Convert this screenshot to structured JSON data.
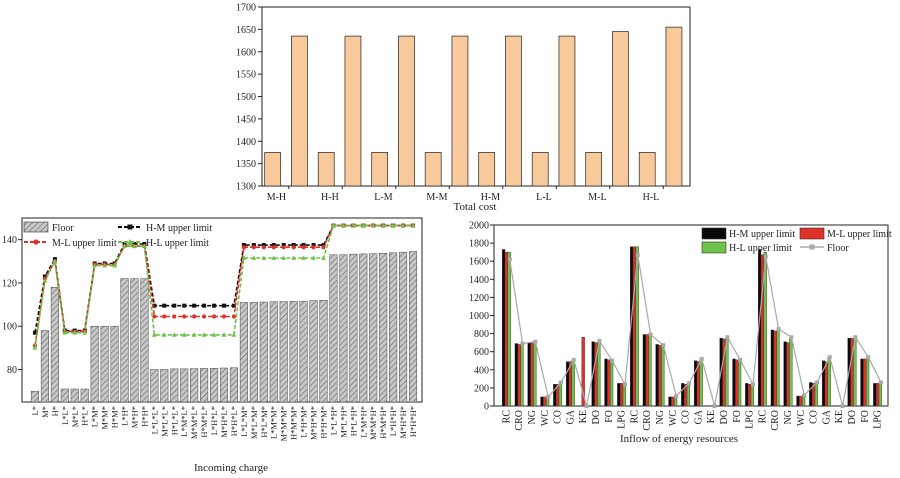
{
  "chart_data": [
    {
      "type": "bar",
      "xlabel": "Total cost",
      "ylim": [
        1300,
        1700
      ],
      "yticks": [
        1300,
        1350,
        1400,
        1450,
        1500,
        1550,
        1600,
        1650,
        1700
      ],
      "categories": [
        "M-H",
        "H-H",
        "L-M",
        "M-M",
        "H-M",
        "L-L",
        "M-L",
        "H-L"
      ],
      "pairs": [
        [
          1375,
          1635
        ],
        [
          1375,
          1635
        ],
        [
          1375,
          1635
        ],
        [
          1375,
          1635
        ],
        [
          1375,
          1635
        ],
        [
          1375,
          1635
        ],
        [
          1375,
          1645
        ],
        [
          1375,
          1655
        ]
      ],
      "bar_color": "#f8c99b",
      "grid": false
    },
    {
      "type": "bar",
      "xlabel": "Incoming charge",
      "ylim": [
        65,
        150
      ],
      "yticks": [
        80,
        100,
        120,
        140
      ],
      "legend_position": "top",
      "categories": [
        "L*",
        "M*",
        "H*",
        "L*L*",
        "M*L*",
        "H*L*",
        "L*M*",
        "M*M*",
        "H*M*",
        "L*H*",
        "M*H*",
        "H*H*",
        "L*L*L*",
        "M*L*L*",
        "H*L*L*",
        "L*M*L*",
        "M*M*L*",
        "H*M*L*",
        "L*H*L*",
        "M*H*L*",
        "H*H*L*",
        "L*L*M*",
        "M*L*M*",
        "H*L*M*",
        "L*M*M*",
        "M*M*M*",
        "H*M*M*",
        "L*H*M*",
        "M*H*M*",
        "H*H*M*",
        "L*L*H*",
        "M*L*H*",
        "H*L*H*",
        "L*M*H*",
        "M*M*H*",
        "H*M*H*",
        "L*H*H*",
        "M*H*H*",
        "H*H*H*"
      ],
      "series": [
        {
          "name": "Floor",
          "style": "bar",
          "color": "#9e9e9e",
          "values": [
            70,
            98,
            118,
            71,
            71,
            71,
            100,
            100,
            100,
            122,
            122,
            122,
            80,
            80,
            80.3,
            80.3,
            80.4,
            80.5,
            80.6,
            80.7,
            80.8,
            111,
            111,
            111.2,
            111.3,
            111.4,
            111.5,
            111.6,
            111.8,
            112,
            133,
            133,
            133.3,
            133.4,
            133.5,
            133.7,
            133.9,
            134.2,
            134.5
          ]
        },
        {
          "name": "H-M upper limit",
          "style": "line",
          "color": "#111111",
          "values": [
            97,
            123,
            131,
            98,
            98,
            98,
            129,
            129,
            129,
            138,
            138,
            138,
            109.5,
            109.5,
            109.5,
            109.5,
            109.5,
            109.5,
            109.5,
            109.5,
            109.5,
            137.5,
            137.5,
            137.5,
            137.5,
            137.5,
            137.5,
            137.5,
            137.5,
            137.5,
            146.5,
            146.5,
            146.5,
            146.5,
            146.5,
            146.5,
            146.5,
            146.5,
            146.5
          ]
        },
        {
          "name": "M-L upper limit",
          "style": "line",
          "color": "#e0302a",
          "values": [
            91,
            122,
            130,
            97.5,
            97.5,
            97.5,
            128.5,
            128.5,
            128.5,
            137,
            137,
            137,
            104.5,
            104.5,
            104.5,
            104.5,
            104.5,
            104.5,
            104.5,
            104.5,
            104.5,
            136.5,
            136.5,
            136.5,
            136.5,
            136.5,
            136.5,
            136.5,
            136.5,
            136.5,
            146.5,
            146.5,
            146.5,
            146.5,
            146.5,
            146.5,
            146.5,
            146.5,
            146.5
          ]
        },
        {
          "name": "H-L upper limit",
          "style": "line",
          "color": "#6cc24a",
          "values": [
            90,
            121,
            130,
            97,
            97,
            97,
            128,
            128,
            128,
            137,
            137,
            137,
            96,
            96,
            96,
            96,
            96,
            96,
            96,
            96,
            96,
            131.5,
            131.5,
            131.5,
            131.5,
            131.5,
            131.5,
            131.5,
            131.5,
            131.5,
            146.5,
            146.5,
            146.5,
            146.5,
            146.5,
            146.5,
            146.5,
            146.5,
            146.5
          ]
        }
      ]
    },
    {
      "type": "bar",
      "xlabel": "Inflow of energy resources",
      "ylim": [
        0,
        2000
      ],
      "yticks": [
        0,
        200,
        400,
        600,
        800,
        1000,
        1200,
        1400,
        1600,
        1800,
        2000
      ],
      "legend_position": "top-right",
      "categories": [
        "RC",
        "CRO",
        "NG",
        "WC",
        "CO",
        "GA",
        "KE",
        "DO",
        "FO",
        "LPG",
        "RC",
        "CRO",
        "NG",
        "WC",
        "CO",
        "GA",
        "KE",
        "DO",
        "FO",
        "LPG",
        "RC",
        "CRO",
        "NG",
        "WC",
        "CO",
        "GA",
        "KE",
        "DO",
        "FO",
        "LPG"
      ],
      "series": [
        {
          "name": "H-M upper limit",
          "style": "bar",
          "color": "#0a0a0a",
          "values": [
            1730,
            690,
            700,
            100,
            240,
            490,
            0,
            710,
            520,
            250,
            1760,
            790,
            680,
            100,
            250,
            500,
            0,
            750,
            520,
            250,
            1730,
            840,
            710,
            110,
            260,
            500,
            0,
            750,
            520,
            250
          ]
        },
        {
          "name": "M-L upper limit",
          "style": "bar",
          "color": "#e0302a",
          "values": [
            1700,
            680,
            700,
            100,
            240,
            490,
            760,
            700,
            510,
            250,
            1760,
            790,
            670,
            100,
            240,
            490,
            0,
            740,
            510,
            240,
            1670,
            830,
            700,
            110,
            250,
            490,
            0,
            750,
            520,
            250
          ]
        },
        {
          "name": "H-L upper limit",
          "style": "bar",
          "color": "#6cc24a",
          "values": [
            1700,
            690,
            710,
            110,
            270,
            510,
            0,
            710,
            520,
            250,
            1760,
            800,
            690,
            110,
            250,
            520,
            0,
            750,
            510,
            250,
            1700,
            840,
            750,
            120,
            270,
            540,
            0,
            750,
            530,
            260
          ]
        },
        {
          "name": "Floor",
          "style": "line",
          "color": "#aaaaaa",
          "values": [
            1620,
            690,
            710,
            100,
            260,
            510,
            0,
            720,
            500,
            240,
            1670,
            790,
            670,
            110,
            250,
            520,
            0,
            760,
            510,
            240,
            1650,
            850,
            760,
            120,
            260,
            540,
            0,
            760,
            540,
            260
          ]
        }
      ]
    }
  ]
}
